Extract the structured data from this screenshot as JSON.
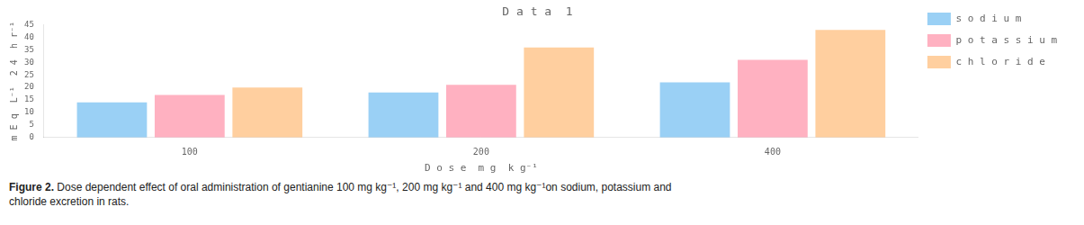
{
  "chart_data": {
    "type": "bar",
    "title": "D a t a  1",
    "xlabel": "D o s e  m g  k g⁻¹",
    "ylabel": "m E q  L⁻¹  2 4  h r⁻¹",
    "categories": [
      "100",
      "200",
      "400"
    ],
    "series": [
      {
        "name": "s o d i u m",
        "values": [
          14,
          18,
          22
        ]
      },
      {
        "name": "p o t a s s i u m",
        "values": [
          17,
          21,
          31
        ]
      },
      {
        "name": "c h l o r i d e",
        "values": [
          20,
          36,
          43
        ]
      }
    ],
    "ylim": [
      0,
      45
    ],
    "yticks": [
      0,
      5,
      10,
      15,
      20,
      25,
      30,
      35,
      40,
      45
    ],
    "grid": false,
    "legend": "right",
    "annotations": [
      "Figure 2.",
      " Dose dependent effect of oral administration of gentianine 100 mg kg⁻¹, 200 mg kg⁻¹ and 400 mg kg⁻¹on sodium, potassium and\nchloride excretion in rats."
    ]
  }
}
